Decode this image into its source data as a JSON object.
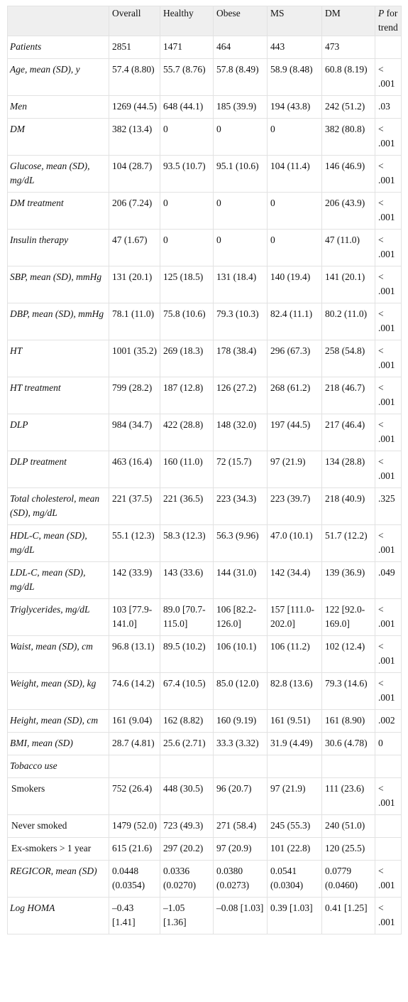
{
  "header": {
    "columns": [
      "Overall",
      "Healthy",
      "Obese",
      "MS",
      "DM"
    ],
    "p_label": {
      "symbol": "P",
      "text": "for trend"
    }
  },
  "rows": [
    {
      "label": "Patients",
      "values": [
        "2851",
        "1471",
        "464",
        "443",
        "473"
      ]
    },
    {
      "label": "Age, mean (SD), y",
      "values": [
        "57.4 (8.80)",
        "55.7 (8.76)",
        "57.8 (8.49)",
        "58.9 (8.48)",
        "60.8 (8.19)"
      ],
      "p": "< .001"
    },
    {
      "label": "Men",
      "values": [
        "1269 (44.5)",
        "648 (44.1)",
        "185 (39.9)",
        "194 (43.8)",
        "242 (51.2)"
      ],
      "p": ".03"
    },
    {
      "label": "DM",
      "values": [
        "382 (13.4)",
        "0",
        "0",
        "0",
        "382 (80.8)"
      ],
      "p": "< .001"
    },
    {
      "label": "Glucose, mean (SD), mg/dL",
      "values": [
        "104 (28.7)",
        "93.5 (10.7)",
        "95.1 (10.6)",
        "104 (11.4)",
        "146 (46.9)"
      ],
      "p": "< .001"
    },
    {
      "label": "DM treatment",
      "values": [
        "206 (7.24)",
        "0",
        "0",
        "0",
        "206 (43.9)"
      ],
      "p": "< .001"
    },
    {
      "label": "Insulin therapy",
      "values": [
        "47 (1.67)",
        "0",
        "0",
        "0",
        "47 (11.0)"
      ],
      "p": "< .001"
    },
    {
      "label": "SBP, mean (SD), mmHg",
      "values": [
        "131 (20.1)",
        "125 (18.5)",
        "131 (18.4)",
        "140 (19.4)",
        "141 (20.1)"
      ],
      "p": "< .001"
    },
    {
      "label": "DBP, mean (SD), mmHg",
      "values": [
        "78.1 (11.0)",
        "75.8 (10.6)",
        "79.3 (10.3)",
        "82.4 (11.1)",
        "80.2 (11.0)"
      ],
      "p": "< .001"
    },
    {
      "label": "HT",
      "values": [
        "1001 (35.2)",
        "269 (18.3)",
        "178 (38.4)",
        "296 (67.3)",
        "258 (54.8)"
      ],
      "p": "< .001"
    },
    {
      "label": "HT treatment",
      "values": [
        "799 (28.2)",
        "187 (12.8)",
        "126 (27.2)",
        "268 (61.2)",
        "218 (46.7)"
      ],
      "p": "< .001"
    },
    {
      "label": "DLP",
      "values": [
        "984 (34.7)",
        "422 (28.8)",
        "148 (32.0)",
        "197 (44.5)",
        "217 (46.4)"
      ],
      "p": "< .001"
    },
    {
      "label": "DLP treatment",
      "values": [
        "463 (16.4)",
        "160 (11.0)",
        "72 (15.7)",
        "97 (21.9)",
        "134 (28.8)"
      ],
      "p": "< .001"
    },
    {
      "label": "Total cholesterol, mean (SD), mg/dL",
      "values": [
        "221 (37.5)",
        "221 (36.5)",
        "223 (34.3)",
        "223 (39.7)",
        "218 (40.9)"
      ],
      "p": ".325"
    },
    {
      "label": "HDL-C, mean (SD), mg/dL",
      "values": [
        "55.1 (12.3)",
        "58.3 (12.3)",
        "56.3 (9.96)",
        "47.0 (10.1)",
        "51.7 (12.2)"
      ],
      "p": "< .001"
    },
    {
      "label": "LDL-C, mean (SD), mg/dL",
      "values": [
        "142 (33.9)",
        "143 (33.6)",
        "144 (31.0)",
        "142 (34.4)",
        "139 (36.9)"
      ],
      "p": ".049"
    },
    {
      "label": "Triglycerides, mg/dL",
      "values": [
        "103 [77.9-141.0]",
        "89.0 [70.7-115.0]",
        "106 [82.2-126.0]",
        "157 [111.0-202.0]",
        "122 [92.0-169.0]"
      ],
      "p": "< .001"
    },
    {
      "label": "Waist, mean (SD), cm",
      "values": [
        "96.8 (13.1)",
        "89.5 (10.2)",
        "106 (10.1)",
        "106 (11.2)",
        "102 (12.4)"
      ],
      "p": "< .001"
    },
    {
      "label": "Weight, mean (SD), kg",
      "values": [
        "74.6 (14.2)",
        "67.4 (10.5)",
        "85.0 (12.0)",
        "82.8 (13.6)",
        "79.3 (14.6)"
      ],
      "p": "< .001"
    },
    {
      "label": "Height, mean (SD), cm",
      "values": [
        "161 (9.04)",
        "162 (8.82)",
        "160 (9.19)",
        "161 (9.51)",
        "161 (8.90)"
      ],
      "p": ".002"
    },
    {
      "label": "BMI, mean (SD)",
      "values": [
        "28.7 (4.81)",
        "25.6 (2.71)",
        "33.3 (3.32)",
        "31.9 (4.49)",
        "30.6 (4.78)"
      ],
      "p": "0"
    },
    {
      "label": "Tobacco use",
      "items": [
        {
          "label": "Smokers",
          "values": [
            "752 (26.4)",
            "448 (30.5)",
            "96 (20.7)",
            "97 (21.9)",
            "111 (23.6)"
          ],
          "p": "< .001"
        },
        {
          "label": "Never smoked",
          "values": [
            "1479 (52.0)",
            "723 (49.3)",
            "271 (58.4)",
            "245 (55.3)",
            "240 (51.0)"
          ]
        },
        {
          "label": "Ex-smokers > 1 year",
          "values": [
            "615 (21.6)",
            "297 (20.2)",
            "97 (20.9)",
            "101 (22.8)",
            "120 (25.5)"
          ]
        }
      ]
    },
    {
      "label": "REGICOR, mean (SD)",
      "values": [
        "0.0448 (0.0354)",
        "0.0336 (0.0270)",
        "0.0380 (0.0273)",
        "0.0541 (0.0304)",
        "0.0779 (0.0460)"
      ],
      "p": "< .001"
    },
    {
      "label": "Log HOMA",
      "values": [
        "–0.43 [1.41]",
        "–1.05 [1.36]",
        "–0.08 [1.03]",
        "0.39 [1.03]",
        "0.41 [1.25]"
      ],
      "p": "< .001"
    }
  ]
}
